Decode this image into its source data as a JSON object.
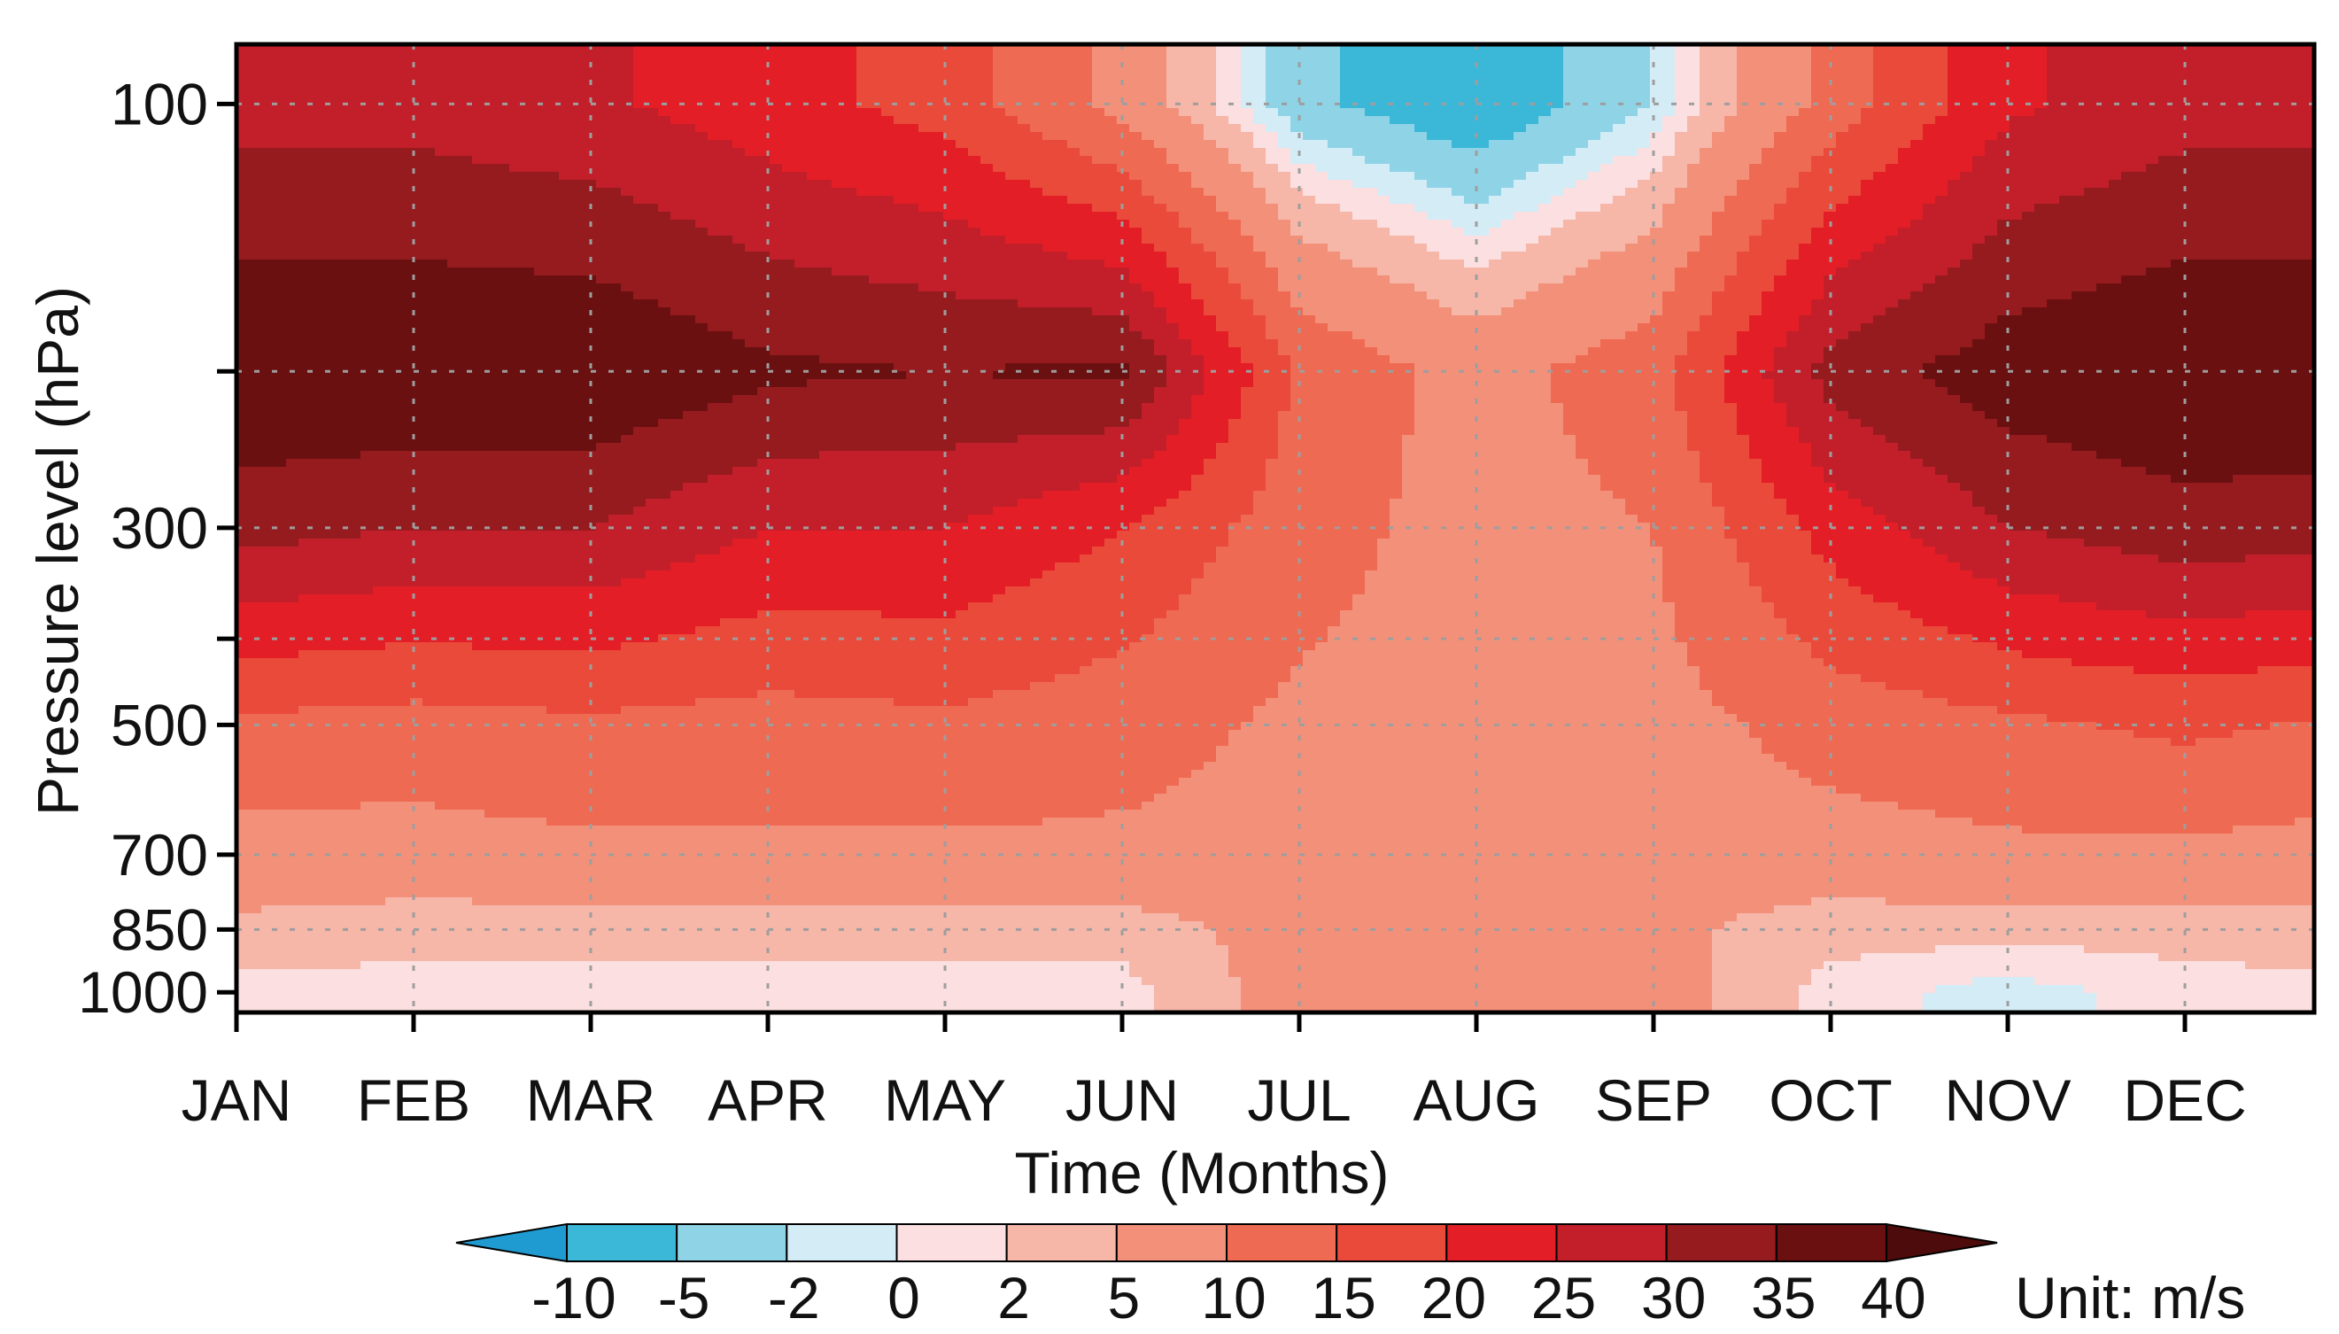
{
  "chart_data": {
    "type": "heatmap",
    "subtype": "filled-contour",
    "xlabel": "Time (Months)",
    "ylabel": "Pressure level (hPa)",
    "x_categories": [
      "JAN",
      "FEB",
      "MAR",
      "APR",
      "MAY",
      "JUN",
      "JUL",
      "AUG",
      "SEP",
      "OCT",
      "NOV",
      "DEC"
    ],
    "y_levels": [
      1000,
      850,
      700,
      500,
      300,
      100
    ],
    "y_ticklabels": [
      "100",
      "300",
      "500",
      "700",
      "850",
      "1000"
    ],
    "grid": true,
    "colorbar": {
      "levels": [
        -10,
        -5,
        -2,
        0,
        2,
        5,
        10,
        15,
        20,
        25,
        30,
        35,
        40
      ],
      "ticklabels": [
        "-10",
        "-5",
        "-2",
        "0",
        "2",
        "5",
        "10",
        "15",
        "20",
        "25",
        "30",
        "35",
        "40"
      ],
      "colors": [
        "#1f9bd1",
        "#3bb7d8",
        "#8fd3e6",
        "#d4ecf6",
        "#fbdfe1",
        "#f6b6a8",
        "#f3907a",
        "#ef6a52",
        "#ea4a3a",
        "#e41e26",
        "#c21f2a",
        "#951b1f",
        "#6a1010",
        "#4e0b0b"
      ],
      "unit_label": "Unit: m/s"
    },
    "field": {
      "approx_values_m_per_s": {
        "rows_pressure_hPa": [
          1000,
          850,
          700,
          500,
          300,
          200,
          100
        ],
        "columns_months": [
          "JAN",
          "FEB",
          "MAR",
          "APR",
          "MAY",
          "JUN",
          "JUL",
          "AUG",
          "SEP",
          "OCT",
          "NOV",
          "DEC"
        ],
        "values": [
          [
            1,
            1,
            1,
            1,
            1,
            1,
            7,
            7,
            7,
            1,
            -1,
            1
          ],
          [
            4,
            3,
            3,
            3,
            3,
            3,
            7,
            6,
            6,
            3,
            3,
            3
          ],
          [
            8,
            8,
            9,
            9,
            9,
            9,
            8,
            7,
            7,
            8,
            9,
            9
          ],
          [
            14,
            13,
            14,
            13,
            14,
            12,
            9,
            8,
            8,
            12,
            14,
            16
          ],
          [
            32,
            30,
            30,
            25,
            25,
            20,
            12,
            8,
            10,
            22,
            30,
            33
          ],
          [
            40,
            40,
            40,
            36,
            35,
            36,
            14,
            8,
            13,
            32,
            38,
            40
          ],
          [
            28,
            28,
            26,
            22,
            18,
            8,
            -4,
            -8,
            -2,
            12,
            24,
            28
          ]
        ]
      }
    }
  }
}
